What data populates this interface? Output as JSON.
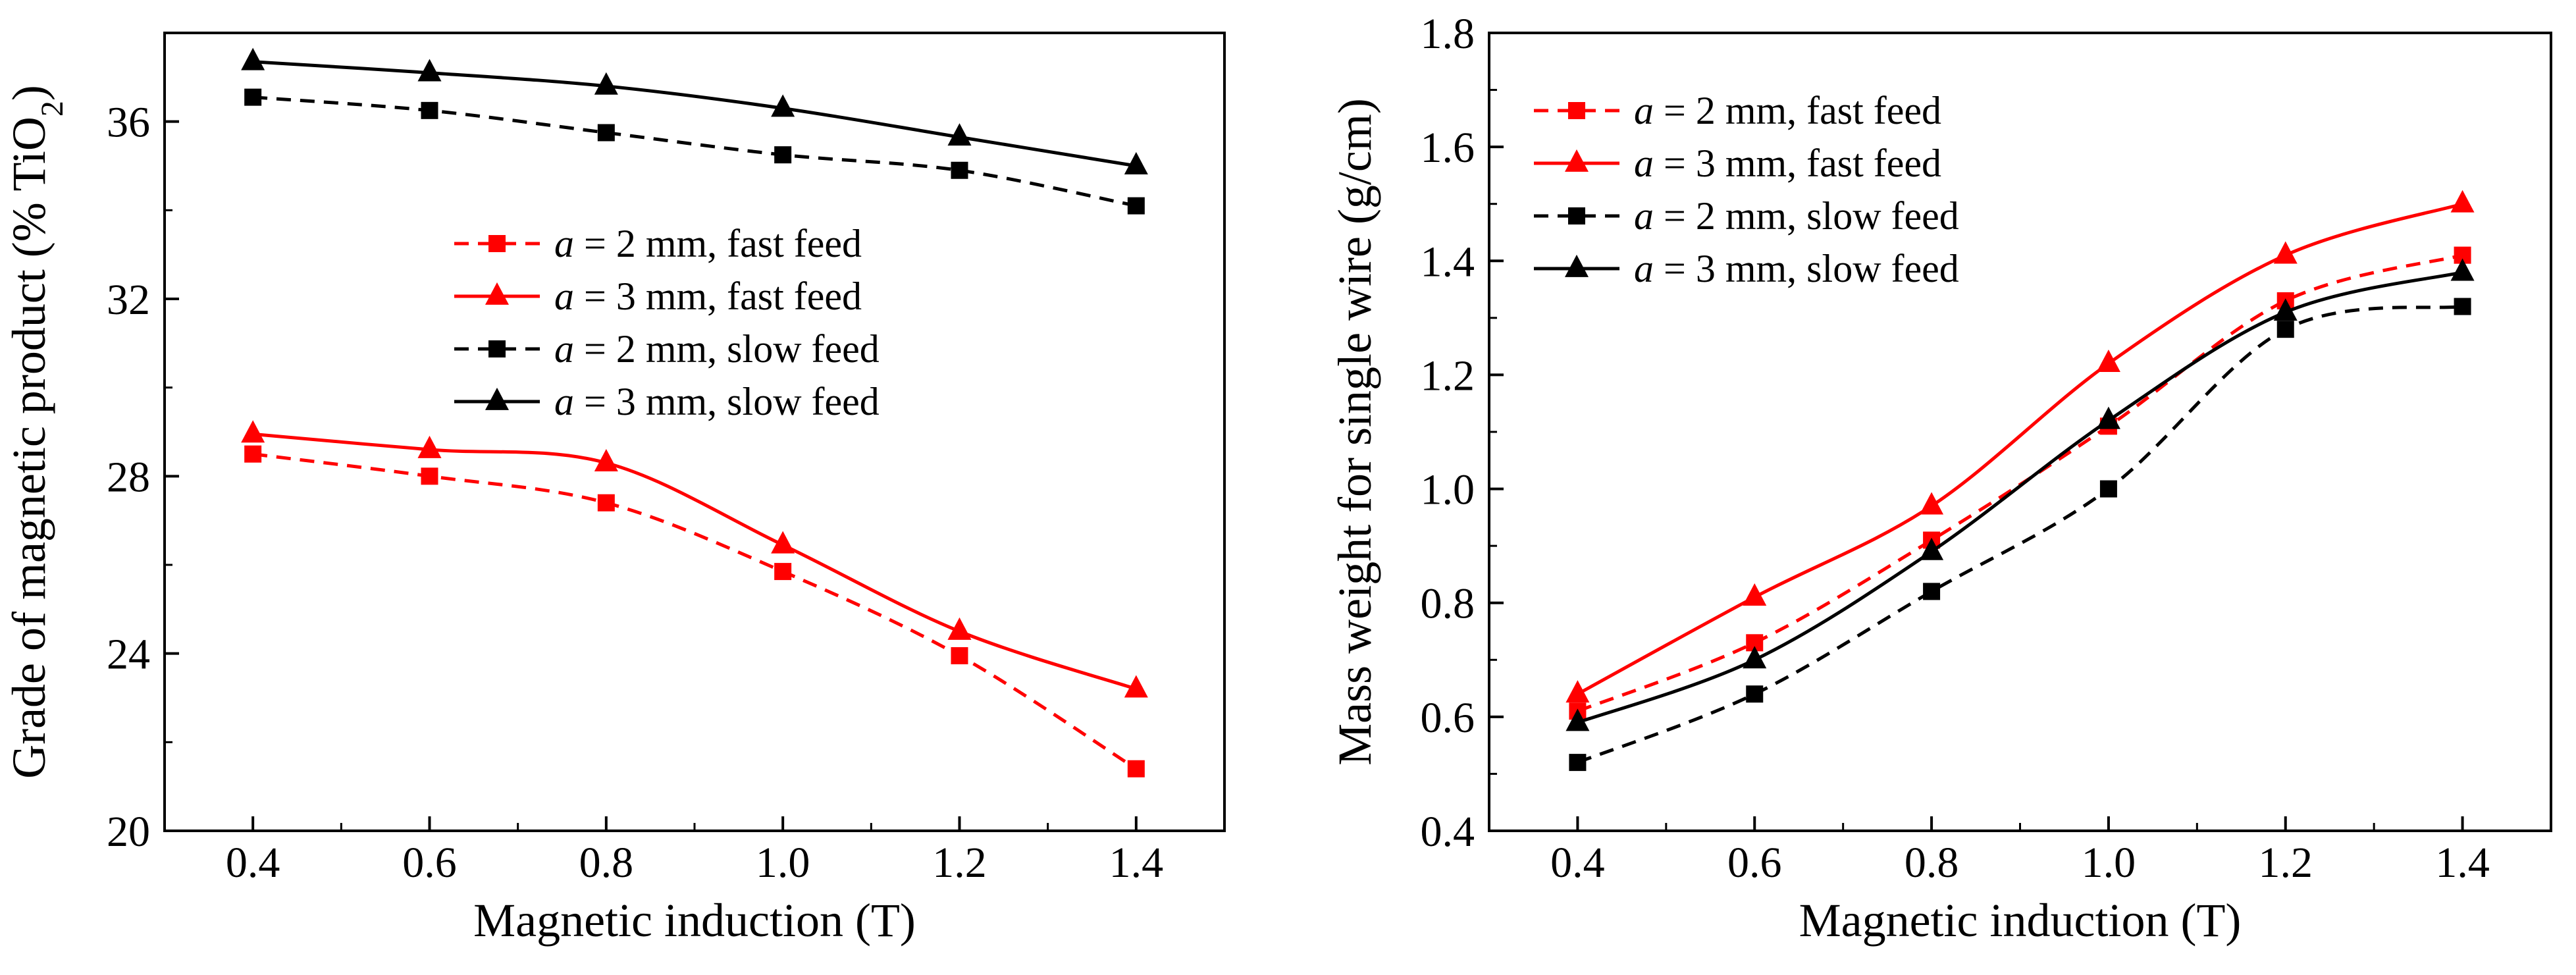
{
  "chart_data": [
    {
      "type": "line",
      "panel": "left",
      "title": "",
      "xlabel": "Magnetic induction (T)",
      "ylabel_parts": [
        "Grade of magnetic product (% TiO",
        "2",
        ")"
      ],
      "xlim": [
        0.3,
        1.5
      ],
      "ylim": [
        20,
        38
      ],
      "xticks": [
        0.4,
        0.6,
        0.8,
        1.0,
        1.2,
        1.4
      ],
      "xtick_labels": [
        "0.4",
        "0.6",
        "0.8",
        "1.0",
        "1.2",
        "1.4"
      ],
      "yticks": [
        20,
        24,
        28,
        32,
        36
      ],
      "ytick_labels": [
        "20",
        "24",
        "28",
        "32",
        "36"
      ],
      "legend_position": "center",
      "x": [
        0.4,
        0.6,
        0.8,
        1.0,
        1.2,
        1.4
      ],
      "series": [
        {
          "name": "a = 2 mm, fast feed",
          "legend_prefix": "a",
          "legend_rest": " = 2 mm, fast feed",
          "color": "#ff0000",
          "dashed": true,
          "marker": "square",
          "values": [
            28.5,
            28.0,
            27.4,
            25.85,
            23.95,
            21.4
          ]
        },
        {
          "name": "a = 3 mm, fast feed",
          "legend_prefix": "a",
          "legend_rest": " = 3 mm, fast feed",
          "color": "#ff0000",
          "dashed": false,
          "marker": "triangle",
          "values": [
            28.95,
            28.6,
            28.3,
            26.45,
            24.5,
            23.2
          ]
        },
        {
          "name": "a = 2 mm, slow feed",
          "legend_prefix": "a",
          "legend_rest": " = 2 mm, slow feed",
          "color": "#000000",
          "dashed": true,
          "marker": "square",
          "values": [
            36.55,
            36.25,
            35.75,
            35.25,
            34.9,
            34.1
          ]
        },
        {
          "name": "a = 3 mm, slow feed",
          "legend_prefix": "a",
          "legend_rest": " = 3 mm, slow feed",
          "color": "#000000",
          "dashed": false,
          "marker": "triangle",
          "values": [
            37.35,
            37.1,
            36.8,
            36.3,
            35.65,
            35.0
          ]
        }
      ]
    },
    {
      "type": "line",
      "panel": "right",
      "title": "",
      "xlabel": "Magnetic induction (T)",
      "ylabel_parts": [
        "Mass weight for single wire (g/cm)"
      ],
      "xlim": [
        0.3,
        1.5
      ],
      "ylim": [
        0.4,
        1.8
      ],
      "xticks": [
        0.4,
        0.6,
        0.8,
        1.0,
        1.2,
        1.4
      ],
      "xtick_labels": [
        "0.4",
        "0.6",
        "0.8",
        "1.0",
        "1.2",
        "1.4"
      ],
      "yticks": [
        0.4,
        0.6,
        0.8,
        1.0,
        1.2,
        1.4,
        1.6,
        1.8
      ],
      "ytick_labels": [
        "0.4",
        "0.6",
        "0.8",
        "1.0",
        "1.2",
        "1.4",
        "1.6",
        "1.8"
      ],
      "legend_position": "top-left",
      "x": [
        0.4,
        0.6,
        0.8,
        1.0,
        1.2,
        1.4
      ],
      "series": [
        {
          "name": "a = 2 mm, fast feed",
          "legend_prefix": "a",
          "legend_rest": " = 2 mm, fast feed",
          "color": "#ff0000",
          "dashed": true,
          "marker": "square",
          "values": [
            0.61,
            0.73,
            0.91,
            1.11,
            1.33,
            1.41
          ]
        },
        {
          "name": "a = 3 mm, fast feed",
          "legend_prefix": "a",
          "legend_rest": " = 3 mm, fast feed",
          "color": "#ff0000",
          "dashed": false,
          "marker": "triangle",
          "values": [
            0.64,
            0.81,
            0.97,
            1.22,
            1.41,
            1.5
          ]
        },
        {
          "name": "a = 2 mm, slow feed",
          "legend_prefix": "a",
          "legend_rest": " = 2 mm, slow feed",
          "color": "#000000",
          "dashed": true,
          "marker": "square",
          "values": [
            0.52,
            0.64,
            0.82,
            1.0,
            1.28,
            1.32
          ]
        },
        {
          "name": "a = 3 mm, slow feed",
          "legend_prefix": "a",
          "legend_rest": " = 3 mm, slow feed",
          "color": "#000000",
          "dashed": false,
          "marker": "triangle",
          "values": [
            0.59,
            0.7,
            0.89,
            1.12,
            1.31,
            1.38
          ]
        }
      ]
    }
  ]
}
